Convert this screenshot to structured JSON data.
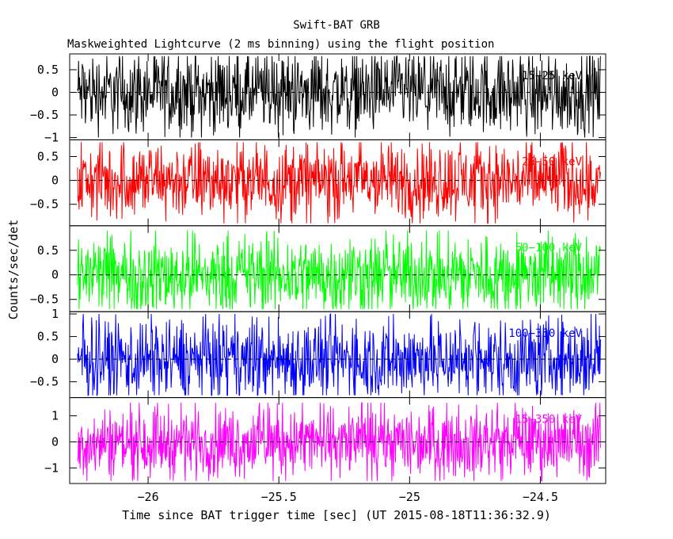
{
  "chart_data": {
    "type": "line",
    "title": "Swift-BAT GRB",
    "subtitle": "Maskweighted Lightcurve (2 ms binning) using the flight position",
    "xlabel": "Time since BAT trigger time [sec] (UT 2015-08-18T11:36:32.9)",
    "ylabel": "Counts/sec/det",
    "xlim": [
      -26.3,
      -24.25
    ],
    "x_data_range": [
      -26.27,
      -24.27
    ],
    "bin_width": 0.002,
    "x_ticks": [
      -26,
      -25.5,
      -25,
      -24.5
    ],
    "x_tick_labels": [
      "−26",
      "−25.5",
      "−25",
      "−24.5"
    ],
    "series": [
      {
        "name": "15−25 keV",
        "color": "#000000",
        "ylim": [
          -1.05,
          0.85
        ],
        "y_ticks": [
          -1,
          -0.5,
          0,
          0.5
        ],
        "y_tick_labels": [
          "−1",
          "−0.5",
          "0",
          "0.5"
        ],
        "amplitude_range": [
          -1.0,
          0.8
        ]
      },
      {
        "name": "25−50 keV",
        "color": "#ff0000",
        "ylim": [
          -0.95,
          0.85
        ],
        "y_ticks": [
          -0.5,
          0,
          0.5
        ],
        "y_tick_labels": [
          "−0.5",
          "0",
          "0.5"
        ],
        "amplitude_range": [
          -0.9,
          0.8
        ]
      },
      {
        "name": "50−100 keV",
        "color": "#00ff00",
        "ylim": [
          -0.75,
          1.0
        ],
        "y_ticks": [
          -0.5,
          0,
          0.5
        ],
        "y_tick_labels": [
          "−0.5",
          "0",
          "0.5"
        ],
        "amplitude_range": [
          -0.7,
          0.9
        ]
      },
      {
        "name": "100−350 keV",
        "color": "#0000ff",
        "ylim": [
          -0.85,
          1.05
        ],
        "y_ticks": [
          -0.5,
          0,
          0.5,
          1
        ],
        "y_tick_labels": [
          "−0.5",
          "0",
          "0.5",
          "1"
        ],
        "amplitude_range": [
          -0.8,
          1.0
        ]
      },
      {
        "name": "15−350 keV",
        "color": "#ff00ff",
        "ylim": [
          -1.6,
          1.7
        ],
        "y_ticks": [
          -1,
          0,
          1
        ],
        "y_tick_labels": [
          "−1",
          "0",
          "1"
        ],
        "amplitude_range": [
          -1.5,
          1.5
        ]
      }
    ]
  }
}
